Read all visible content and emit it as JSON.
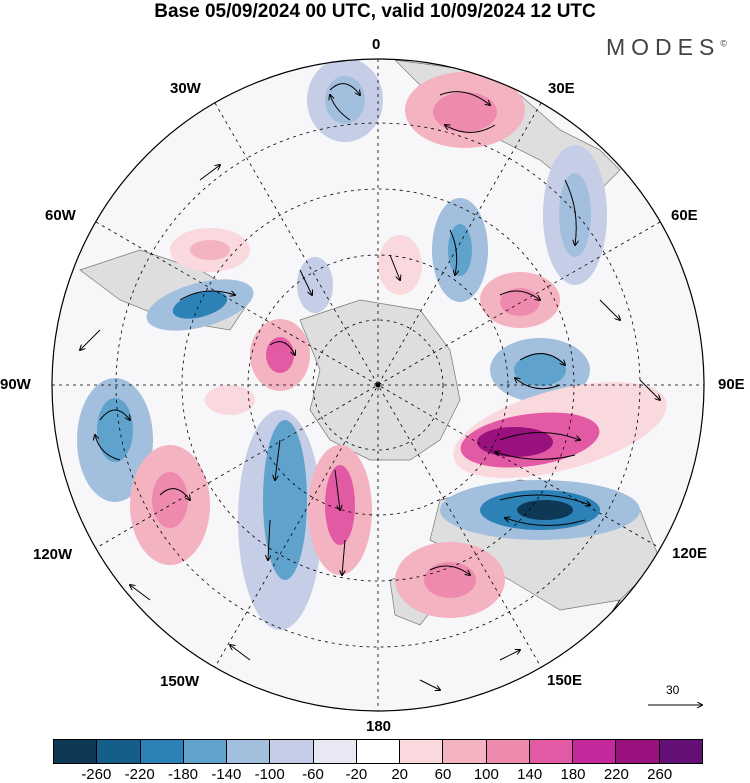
{
  "title": "Base 05/09/2024 00 UTC, valid 10/09/2024 12 UTC",
  "brand": "MODES",
  "brand_mark": "©",
  "longitude_labels": {
    "lon_0": "0",
    "lon_30e": "30E",
    "lon_60e": "60E",
    "lon_90e": "90E",
    "lon_120e": "120E",
    "lon_150e": "150E",
    "lon_180": "180",
    "lon_150w": "150W",
    "lon_120w": "120W",
    "lon_90w": "90W",
    "lon_60w": "60W",
    "lon_30w": "30W"
  },
  "vector_scale_label": "30",
  "colorbar": {
    "ticks": [
      "-260",
      "-220",
      "-180",
      "-140",
      "-100",
      "-60",
      "-20",
      "20",
      "60",
      "100",
      "140",
      "180",
      "220",
      "260"
    ],
    "colors": [
      "#0d3956",
      "#155e8a",
      "#2c82b6",
      "#5fa3cd",
      "#a3bfde",
      "#c5cee6",
      "#e8e8f4",
      "#ffffff",
      "#f9d9de",
      "#f4b3c0",
      "#ef8aaf",
      "#e25aa4",
      "#c4289a",
      "#99117c",
      "#640f76"
    ]
  }
}
